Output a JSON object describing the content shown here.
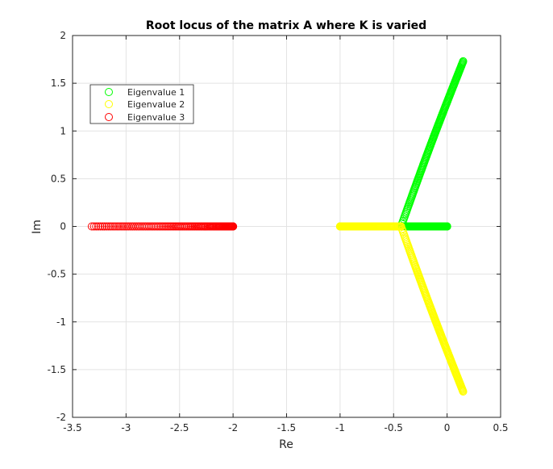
{
  "chart_data": {
    "type": "scatter",
    "title": "Root locus of the matrix A where K is varied",
    "xlabel": "Re",
    "ylabel": "Im",
    "xlim": [
      -3.5,
      0.5
    ],
    "ylim": [
      -2,
      2
    ],
    "xticks": [
      -3.5,
      -3,
      -2.5,
      -2,
      -1.5,
      -1,
      -0.5,
      0,
      0.5
    ],
    "yticks": [
      -2,
      -1.5,
      -1,
      -0.5,
      0,
      0.5,
      1,
      1.5,
      2
    ],
    "xtick_labels": [
      "-3.5",
      "-3",
      "-2.5",
      "-2",
      "-1.5",
      "-1",
      "-0.5",
      "0",
      "0.5"
    ],
    "ytick_labels": [
      "-2",
      "-1.5",
      "-1",
      "-0.5",
      "0",
      "0.5",
      "1",
      "1.5",
      "2"
    ],
    "grid": true,
    "legend_position": "top-left",
    "marker": "circle-open",
    "series": [
      {
        "name": "Eigenvalue 1",
        "color": "#00ff00",
        "segments": [
          {
            "kind": "real",
            "re_start": 0.0,
            "re_end": -0.43,
            "im": 0
          },
          {
            "kind": "branch",
            "breakaway_re": -0.43,
            "end": [
              0.15,
              1.73
            ],
            "curve": 0.12
          }
        ]
      },
      {
        "name": "Eigenvalue 2",
        "color": "#ffff00",
        "segments": [
          {
            "kind": "real",
            "re_start": -1.0,
            "re_end": -0.43,
            "im": 0
          },
          {
            "kind": "branch",
            "breakaway_re": -0.43,
            "end": [
              0.15,
              -1.73
            ],
            "curve": 0.12
          }
        ]
      },
      {
        "name": "Eigenvalue 3",
        "color": "#ff0000",
        "segments": [
          {
            "kind": "real",
            "re_start": -2.0,
            "re_end": -3.32,
            "im": 0
          }
        ]
      }
    ]
  }
}
